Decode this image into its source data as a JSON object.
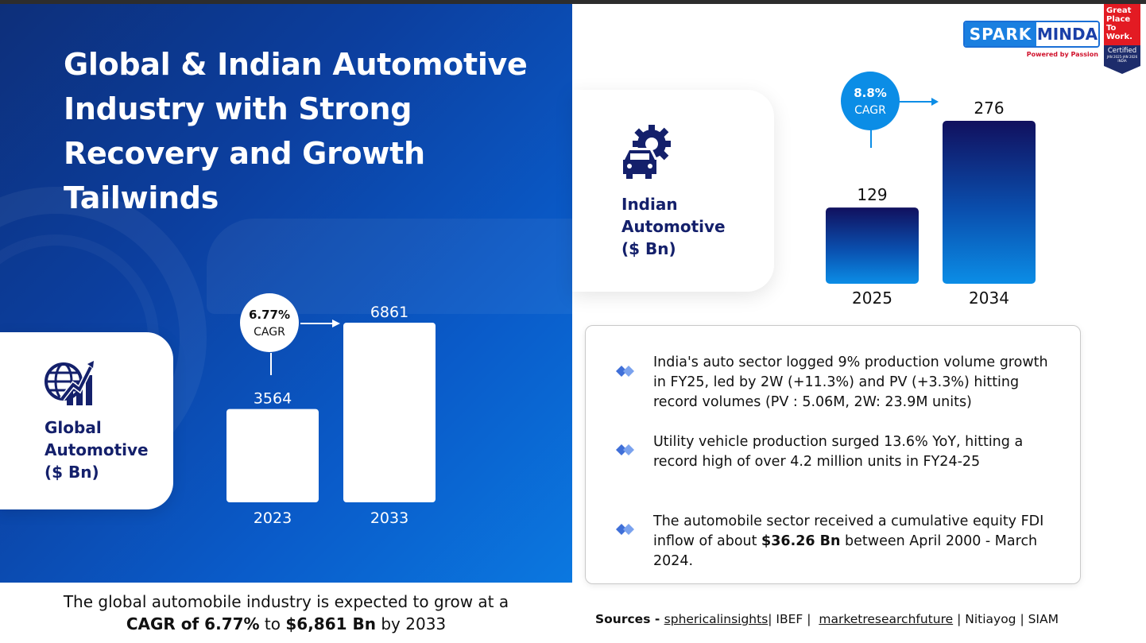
{
  "title": "Global & Indian Automotive Industry with Strong Recovery and Growth Tailwinds",
  "global_card": {
    "label_lines": [
      "Global",
      "Automotive",
      "($ Bn)"
    ],
    "icon": "globe-growth-icon"
  },
  "india_card": {
    "label_lines": [
      "Indian",
      "Automotive",
      "($ Bn)"
    ],
    "icon": "car-gear-icon"
  },
  "caption": {
    "line1": "The global automobile industry is expected to grow at a",
    "bold1": "CAGR of 6.77%",
    "mid": " to ",
    "bold2": "$6,861 Bn",
    "end": " by 2033"
  },
  "logo": {
    "spark": "SPARK",
    "minda": "MINDA",
    "tagline": "Powered by Passion"
  },
  "gptw": {
    "line1": "Great",
    "line2": "Place",
    "line3": "To",
    "line4": "Work.",
    "certified": "Certified",
    "period": "JAN 2025-JAN 2026",
    "country": "INDIA"
  },
  "bullets": [
    {
      "text": "India's auto sector logged 9% production volume growth in FY25, led by 2W (+11.3%) and PV (+3.3%) hitting record volumes (PV : 5.06M, 2W: 23.9M units)"
    },
    {
      "text": "Utility vehicle production surged 13.6% YoY, hitting a record high of over 4.2 million units in FY24-25"
    },
    {
      "pre": "The automobile sector received a cumulative equity FDI inflow of about ",
      "bold": "$36.26 Bn",
      "post": " between April 2000 - March 2024."
    }
  ],
  "sources": {
    "label": "Sources - ",
    "items": [
      "sphericalinsights",
      "| IBEF |  ",
      "marketresearchfuture",
      " | Nitiayog | SIAM"
    ]
  },
  "colors": {
    "navy": "#14206b",
    "accent": "#0b8de6",
    "white": "#ffffff"
  },
  "chart_data": [
    {
      "type": "bar",
      "title": "Global Automotive ($ Bn)",
      "categories": [
        "2023",
        "2033"
      ],
      "values": [
        3564,
        6861
      ],
      "value_labels": [
        "3564",
        "6861"
      ],
      "annotation": {
        "value": "6.77%",
        "label": "CAGR"
      },
      "ylim": [
        0,
        6861
      ]
    },
    {
      "type": "bar",
      "title": "Indian Automotive ($ Bn)",
      "categories": [
        "2025",
        "2034"
      ],
      "values": [
        129,
        276
      ],
      "value_labels": [
        "129",
        "276"
      ],
      "annotation": {
        "value": "8.8%",
        "label": "CAGR"
      },
      "ylim": [
        0,
        276
      ]
    }
  ]
}
